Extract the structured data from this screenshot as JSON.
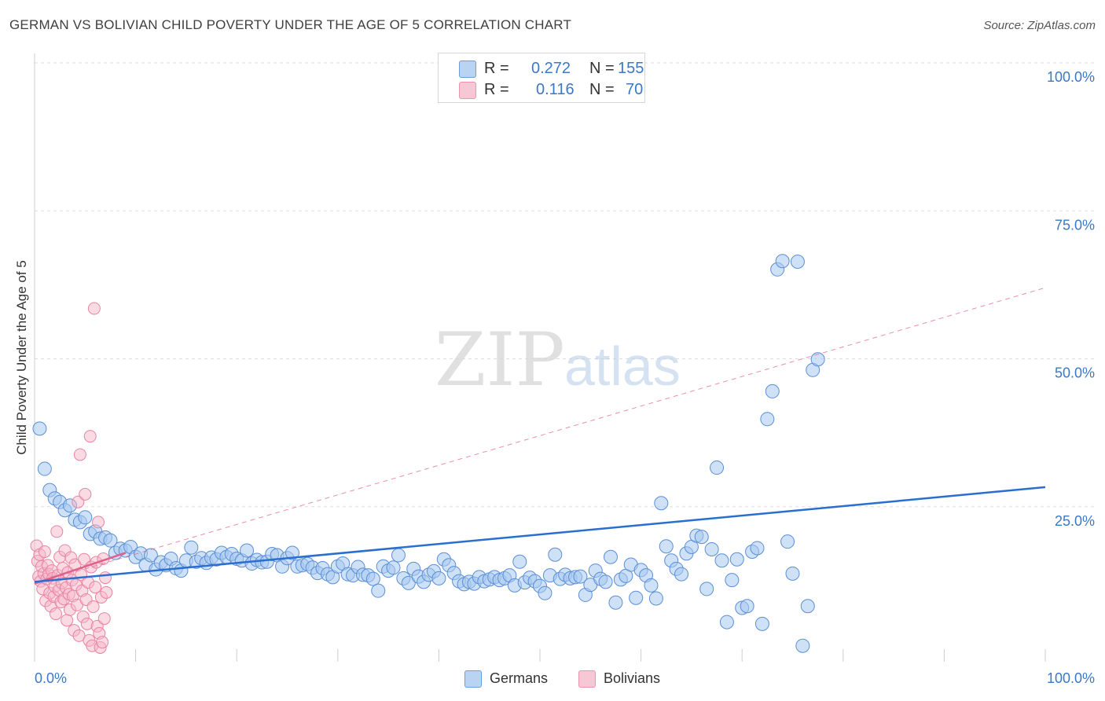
{
  "title": "GERMAN VS BOLIVIAN CHILD POVERTY UNDER THE AGE OF 5 CORRELATION CHART",
  "source": "Source: ZipAtlas.com",
  "watermark": {
    "zip": "ZIP",
    "atlas": "atlas"
  },
  "legend_top": {
    "german": {
      "r_label": "R =",
      "r_value": "0.272",
      "n_label": "N =",
      "n_value": "155"
    },
    "bolivian": {
      "r_label": "R =",
      "r_value": "0.116",
      "n_label": "N =",
      "n_value": "70"
    }
  },
  "legend_bottom": {
    "german": "Germans",
    "bolivian": "Bolivians"
  },
  "colors": {
    "german_fill": "#a8c8f0",
    "german_stroke": "#5a8fd6",
    "german_line": "#2a6fd0",
    "bolivian_fill": "#f6b6c8",
    "bolivian_stroke": "#e884a4",
    "bolivian_line": "#e0608a",
    "axis_text": "#3a78c8",
    "grid": "#dddddd"
  },
  "chart_data": {
    "type": "scatter",
    "title": "GERMAN VS BOLIVIAN CHILD POVERTY UNDER THE AGE OF 5 CORRELATION CHART",
    "xlabel": "",
    "ylabel": "Child Poverty Under the Age of 5",
    "xlim": [
      0,
      100
    ],
    "ylim": [
      0,
      100
    ],
    "x_tick_labels": [
      "0.0%",
      "100.0%"
    ],
    "y_tick_labels": [
      "25.0%",
      "50.0%",
      "75.0%",
      "100.0%"
    ],
    "y_ticks": [
      25,
      50,
      75,
      100
    ],
    "grid": true,
    "legend_position": "top-center",
    "series": [
      {
        "name": "Germans",
        "r": 0.272,
        "n": 155,
        "trend": {
          "x": [
            0,
            100
          ],
          "y": [
            12.3,
            28.3
          ],
          "style": "solid"
        },
        "points": [
          [
            0.5,
            38.2
          ],
          [
            1,
            31.4
          ],
          [
            1.5,
            27.8
          ],
          [
            2,
            26.4
          ],
          [
            2.5,
            25.8
          ],
          [
            3,
            24.4
          ],
          [
            3.5,
            25.2
          ],
          [
            4,
            22.8
          ],
          [
            4.5,
            22.4
          ],
          [
            5,
            23.2
          ],
          [
            5.5,
            20.4
          ],
          [
            6,
            20.8
          ],
          [
            6.5,
            19.6
          ],
          [
            7,
            19.8
          ],
          [
            7.5,
            19.3
          ],
          [
            8,
            17.2
          ],
          [
            8.5,
            17.9
          ],
          [
            9,
            17.6
          ],
          [
            9.5,
            18.2
          ],
          [
            10,
            16.5
          ],
          [
            10.5,
            17.1
          ],
          [
            11,
            15.2
          ],
          [
            11.5,
            16.8
          ],
          [
            12,
            14.4
          ],
          [
            12.5,
            15.6
          ],
          [
            13,
            15.1
          ],
          [
            13.5,
            16.2
          ],
          [
            14,
            14.6
          ],
          [
            14.5,
            14.2
          ],
          [
            15,
            15.9
          ],
          [
            15.5,
            18.1
          ],
          [
            16,
            15.7
          ],
          [
            16.5,
            16.3
          ],
          [
            17,
            15.5
          ],
          [
            17.5,
            16.4
          ],
          [
            18,
            16.1
          ],
          [
            18.5,
            17.2
          ],
          [
            19,
            16.5
          ],
          [
            19.5,
            17.0
          ],
          [
            20,
            16.2
          ],
          [
            20.5,
            15.9
          ],
          [
            21,
            17.6
          ],
          [
            21.5,
            15.4
          ],
          [
            22,
            16.0
          ],
          [
            22.5,
            15.6
          ],
          [
            23,
            15.7
          ],
          [
            23.5,
            17.0
          ],
          [
            24,
            16.8
          ],
          [
            24.5,
            14.9
          ],
          [
            25,
            16.3
          ],
          [
            25.5,
            17.2
          ],
          [
            26,
            14.9
          ],
          [
            26.5,
            15.1
          ],
          [
            27,
            15.3
          ],
          [
            27.5,
            14.7
          ],
          [
            28,
            13.8
          ],
          [
            28.5,
            14.6
          ],
          [
            29,
            13.6
          ],
          [
            29.5,
            13.1
          ],
          [
            30,
            14.9
          ],
          [
            30.5,
            15.4
          ],
          [
            31,
            13.6
          ],
          [
            31.5,
            13.4
          ],
          [
            32,
            14.8
          ],
          [
            32.5,
            13.5
          ],
          [
            33,
            13.4
          ],
          [
            33.5,
            12.8
          ],
          [
            34,
            10.8
          ],
          [
            34.5,
            14.9
          ],
          [
            35,
            14.2
          ],
          [
            35.5,
            14.7
          ],
          [
            36,
            16.8
          ],
          [
            36.5,
            12.9
          ],
          [
            37,
            12.1
          ],
          [
            37.5,
            14.5
          ],
          [
            38,
            13.2
          ],
          [
            38.5,
            12.3
          ],
          [
            39,
            13.5
          ],
          [
            39.5,
            14.1
          ],
          [
            40,
            12.9
          ],
          [
            40.5,
            16.1
          ],
          [
            41,
            15.1
          ],
          [
            41.5,
            13.8
          ],
          [
            42,
            12.4
          ],
          [
            42.5,
            11.9
          ],
          [
            43,
            12.3
          ],
          [
            43.5,
            12.0
          ],
          [
            44,
            13.1
          ],
          [
            44.5,
            12.4
          ],
          [
            45,
            12.7
          ],
          [
            45.5,
            13.1
          ],
          [
            46,
            12.6
          ],
          [
            46.5,
            12.9
          ],
          [
            47,
            13.4
          ],
          [
            47.5,
            11.7
          ],
          [
            48,
            15.7
          ],
          [
            48.5,
            12.2
          ],
          [
            49,
            13.0
          ],
          [
            49.5,
            12.4
          ],
          [
            50,
            11.6
          ],
          [
            50.5,
            10.4
          ],
          [
            51,
            13.4
          ],
          [
            51.5,
            16.9
          ],
          [
            52,
            12.8
          ],
          [
            52.5,
            13.5
          ],
          [
            53,
            12.9
          ],
          [
            53.5,
            13.1
          ],
          [
            54,
            13.2
          ],
          [
            54.5,
            10.1
          ],
          [
            55,
            11.8
          ],
          [
            55.5,
            14.2
          ],
          [
            56,
            12.8
          ],
          [
            56.5,
            12.3
          ],
          [
            57,
            16.5
          ],
          [
            57.5,
            8.8
          ],
          [
            58,
            12.7
          ],
          [
            58.5,
            13.3
          ],
          [
            59,
            15.2
          ],
          [
            59.5,
            9.6
          ],
          [
            60,
            14.3
          ],
          [
            60.5,
            13.4
          ],
          [
            61,
            11.7
          ],
          [
            61.5,
            9.5
          ],
          [
            62,
            25.6
          ],
          [
            62.5,
            18.3
          ],
          [
            63,
            15.9
          ],
          [
            63.5,
            14.5
          ],
          [
            64,
            13.6
          ],
          [
            64.5,
            17.1
          ],
          [
            65,
            18.2
          ],
          [
            65.5,
            20.1
          ],
          [
            66,
            19.9
          ],
          [
            66.5,
            11.1
          ],
          [
            67,
            17.8
          ],
          [
            67.5,
            31.6
          ],
          [
            68,
            15.9
          ],
          [
            68.5,
            5.5
          ],
          [
            69,
            12.6
          ],
          [
            69.5,
            16.1
          ],
          [
            70,
            7.9
          ],
          [
            70.5,
            8.2
          ],
          [
            71,
            17.4
          ],
          [
            71.5,
            18.0
          ],
          [
            72,
            5.2
          ],
          [
            72.5,
            39.8
          ],
          [
            73,
            44.5
          ],
          [
            73.5,
            65.1
          ],
          [
            74,
            66.5
          ],
          [
            74.5,
            19.1
          ],
          [
            75,
            13.7
          ],
          [
            75.5,
            66.4
          ],
          [
            76,
            1.5
          ],
          [
            76.5,
            8.2
          ],
          [
            77,
            48.1
          ],
          [
            77.5,
            49.9
          ]
        ]
      },
      {
        "name": "Bolivians",
        "r": 0.116,
        "n": 70,
        "trend": {
          "x": [
            0,
            9
          ],
          "y": [
            12.0,
            17.2
          ],
          "style": "solid",
          "extended": {
            "x": [
              0,
              100
            ],
            "y": [
              12.0,
              62.0
            ],
            "style": "dashed"
          }
        },
        "points": [
          [
            0.2,
            18.4
          ],
          [
            0.3,
            15.8
          ],
          [
            0.4,
            13.2
          ],
          [
            0.5,
            16.9
          ],
          [
            0.6,
            12.4
          ],
          [
            0.7,
            14.9
          ],
          [
            0.8,
            11.1
          ],
          [
            0.9,
            13.7
          ],
          [
            1,
            17.4
          ],
          [
            1.1,
            9.1
          ],
          [
            1.2,
            12.8
          ],
          [
            1.3,
            15.1
          ],
          [
            1.4,
            13.6
          ],
          [
            1.5,
            10.4
          ],
          [
            1.6,
            8.2
          ],
          [
            1.7,
            14.2
          ],
          [
            1.8,
            12.9
          ],
          [
            1.9,
            9.8
          ],
          [
            2,
            11.5
          ],
          [
            2.1,
            6.9
          ],
          [
            2.2,
            20.8
          ],
          [
            2.3,
            13.4
          ],
          [
            2.4,
            10.9
          ],
          [
            2.5,
            16.5
          ],
          [
            2.6,
            8.9
          ],
          [
            2.7,
            12.1
          ],
          [
            2.8,
            14.6
          ],
          [
            2.9,
            9.4
          ],
          [
            3,
            17.6
          ],
          [
            3.1,
            11.3
          ],
          [
            3.2,
            5.8
          ],
          [
            3.3,
            13.9
          ],
          [
            3.4,
            10.2
          ],
          [
            3.5,
            7.6
          ],
          [
            3.6,
            16.4
          ],
          [
            3.7,
            12.6
          ],
          [
            3.8,
            9.9
          ],
          [
            3.9,
            4.1
          ],
          [
            4,
            15.2
          ],
          [
            4.1,
            11.8
          ],
          [
            4.2,
            8.4
          ],
          [
            4.3,
            25.8
          ],
          [
            4.4,
            3.2
          ],
          [
            4.5,
            33.8
          ],
          [
            4.6,
            13.5
          ],
          [
            4.7,
            10.8
          ],
          [
            4.8,
            6.4
          ],
          [
            4.9,
            16.1
          ],
          [
            5,
            27.1
          ],
          [
            5.1,
            9.3
          ],
          [
            5.2,
            5.2
          ],
          [
            5.3,
            12.2
          ],
          [
            5.4,
            2.4
          ],
          [
            5.5,
            36.9
          ],
          [
            5.6,
            14.8
          ],
          [
            5.7,
            1.5
          ],
          [
            5.8,
            8.1
          ],
          [
            5.9,
            58.5
          ],
          [
            6,
            11.4
          ],
          [
            6.1,
            15.6
          ],
          [
            6.2,
            4.8
          ],
          [
            6.3,
            22.4
          ],
          [
            6.4,
            3.6
          ],
          [
            6.5,
            1.2
          ],
          [
            6.6,
            9.7
          ],
          [
            6.7,
            2.1
          ],
          [
            6.8,
            16.2
          ],
          [
            6.9,
            6.1
          ],
          [
            7,
            13.0
          ],
          [
            7.1,
            10.5
          ]
        ]
      }
    ]
  }
}
